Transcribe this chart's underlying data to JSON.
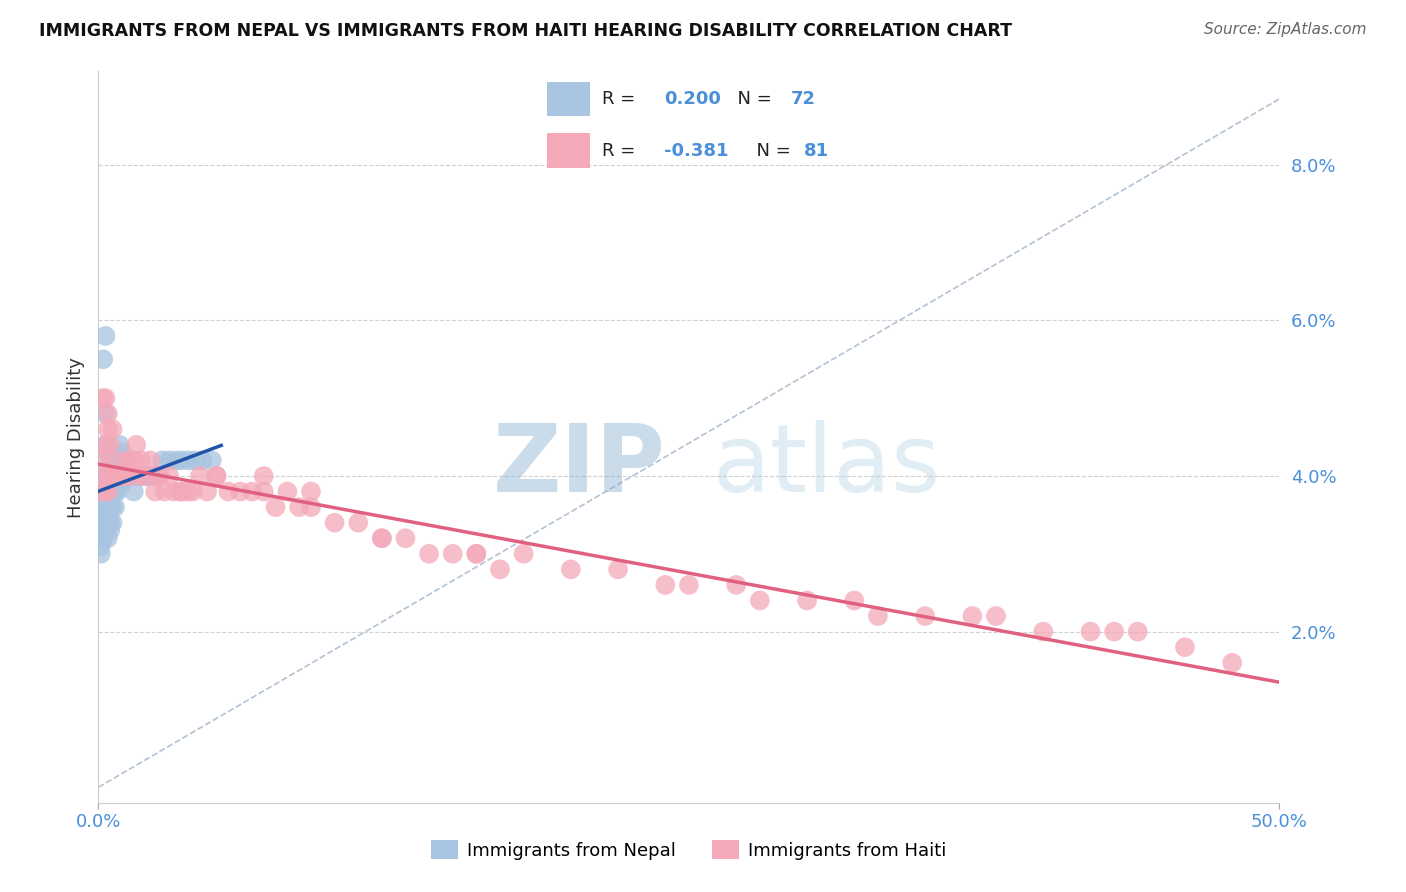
{
  "title": "IMMIGRANTS FROM NEPAL VS IMMIGRANTS FROM HAITI HEARING DISABILITY CORRELATION CHART",
  "source": "Source: ZipAtlas.com",
  "ylabel": "Hearing Disability",
  "yticks": [
    0.02,
    0.04,
    0.06,
    0.08
  ],
  "ytick_labels": [
    "2.0%",
    "4.0%",
    "6.0%",
    "8.0%"
  ],
  "xlim": [
    0.0,
    0.5
  ],
  "ylim": [
    -0.002,
    0.092
  ],
  "nepal_color": "#a8c4e0",
  "haiti_color": "#f4a8b8",
  "nepal_line_color": "#2255aa",
  "haiti_line_color": "#e06080",
  "diag_line_color": "#aabbd0",
  "watermark_zip": "ZIP",
  "watermark_atlas": "atlas",
  "watermark_color_zip": "#b8cfe8",
  "watermark_color_atlas": "#c8dce8",
  "nepal_x": [
    0.001,
    0.001,
    0.001,
    0.001,
    0.001,
    0.002,
    0.002,
    0.002,
    0.002,
    0.002,
    0.002,
    0.003,
    0.003,
    0.003,
    0.003,
    0.003,
    0.003,
    0.003,
    0.004,
    0.004,
    0.004,
    0.004,
    0.004,
    0.004,
    0.005,
    0.005,
    0.005,
    0.005,
    0.005,
    0.005,
    0.006,
    0.006,
    0.006,
    0.006,
    0.007,
    0.007,
    0.007,
    0.007,
    0.008,
    0.008,
    0.008,
    0.009,
    0.009,
    0.009,
    0.01,
    0.01,
    0.01,
    0.011,
    0.011,
    0.012,
    0.012,
    0.013,
    0.014,
    0.015,
    0.015,
    0.016,
    0.017,
    0.018,
    0.019,
    0.02,
    0.021,
    0.022,
    0.024,
    0.025,
    0.027,
    0.03,
    0.033,
    0.035,
    0.038,
    0.041,
    0.044,
    0.048
  ],
  "nepal_y": [
    0.035,
    0.034,
    0.033,
    0.031,
    0.03,
    0.055,
    0.04,
    0.038,
    0.036,
    0.034,
    0.032,
    0.058,
    0.048,
    0.044,
    0.04,
    0.037,
    0.035,
    0.033,
    0.043,
    0.04,
    0.038,
    0.036,
    0.034,
    0.032,
    0.042,
    0.04,
    0.038,
    0.036,
    0.034,
    0.033,
    0.04,
    0.038,
    0.036,
    0.034,
    0.042,
    0.04,
    0.038,
    0.036,
    0.042,
    0.04,
    0.038,
    0.044,
    0.042,
    0.04,
    0.043,
    0.041,
    0.039,
    0.042,
    0.04,
    0.042,
    0.04,
    0.04,
    0.04,
    0.04,
    0.038,
    0.04,
    0.04,
    0.04,
    0.04,
    0.04,
    0.04,
    0.04,
    0.04,
    0.04,
    0.042,
    0.042,
    0.042,
    0.042,
    0.042,
    0.042,
    0.042,
    0.042
  ],
  "haiti_x": [
    0.001,
    0.001,
    0.002,
    0.002,
    0.003,
    0.003,
    0.004,
    0.004,
    0.005,
    0.005,
    0.006,
    0.006,
    0.007,
    0.008,
    0.009,
    0.01,
    0.011,
    0.012,
    0.013,
    0.014,
    0.016,
    0.017,
    0.018,
    0.02,
    0.022,
    0.024,
    0.026,
    0.028,
    0.03,
    0.032,
    0.035,
    0.038,
    0.04,
    0.043,
    0.046,
    0.05,
    0.055,
    0.06,
    0.065,
    0.07,
    0.075,
    0.08,
    0.085,
    0.09,
    0.1,
    0.11,
    0.12,
    0.13,
    0.14,
    0.15,
    0.16,
    0.17,
    0.18,
    0.2,
    0.22,
    0.24,
    0.25,
    0.27,
    0.28,
    0.3,
    0.32,
    0.33,
    0.35,
    0.37,
    0.38,
    0.4,
    0.42,
    0.43,
    0.44,
    0.46,
    0.003,
    0.004,
    0.015,
    0.025,
    0.035,
    0.05,
    0.07,
    0.09,
    0.12,
    0.16,
    0.48
  ],
  "haiti_y": [
    0.042,
    0.038,
    0.05,
    0.04,
    0.044,
    0.038,
    0.046,
    0.038,
    0.044,
    0.04,
    0.046,
    0.04,
    0.042,
    0.04,
    0.04,
    0.04,
    0.04,
    0.042,
    0.04,
    0.042,
    0.044,
    0.04,
    0.042,
    0.04,
    0.042,
    0.038,
    0.04,
    0.038,
    0.04,
    0.038,
    0.038,
    0.038,
    0.038,
    0.04,
    0.038,
    0.04,
    0.038,
    0.038,
    0.038,
    0.038,
    0.036,
    0.038,
    0.036,
    0.036,
    0.034,
    0.034,
    0.032,
    0.032,
    0.03,
    0.03,
    0.03,
    0.028,
    0.03,
    0.028,
    0.028,
    0.026,
    0.026,
    0.026,
    0.024,
    0.024,
    0.024,
    0.022,
    0.022,
    0.022,
    0.022,
    0.02,
    0.02,
    0.02,
    0.02,
    0.018,
    0.05,
    0.048,
    0.042,
    0.04,
    0.038,
    0.04,
    0.04,
    0.038,
    0.032,
    0.03,
    0.016
  ]
}
